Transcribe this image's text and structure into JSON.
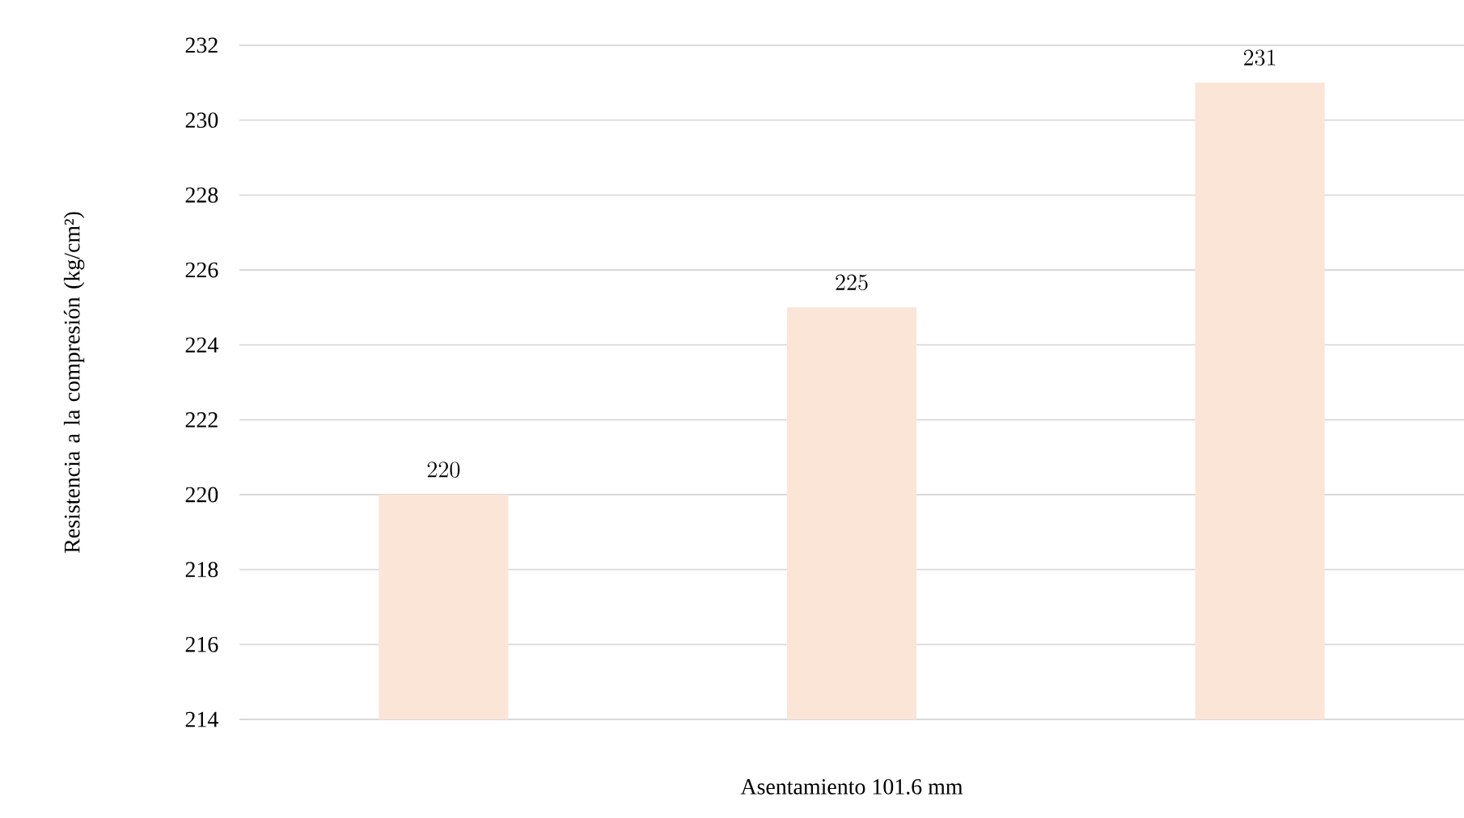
{
  "chart_data": {
    "type": "bar",
    "xlabel": "Asentamiento 101.6 mm",
    "ylabel": "Resistencia a la compresión (kg/cm²)",
    "categories": [
      null,
      null,
      null
    ],
    "values": [
      220,
      225,
      231
    ],
    "color": "#fbe5d6",
    "ylim": [
      214,
      232
    ],
    "yticks": [
      214,
      216,
      218,
      220,
      222,
      224,
      226,
      228,
      230,
      232
    ],
    "grid": "y",
    "data_labels": true
  }
}
